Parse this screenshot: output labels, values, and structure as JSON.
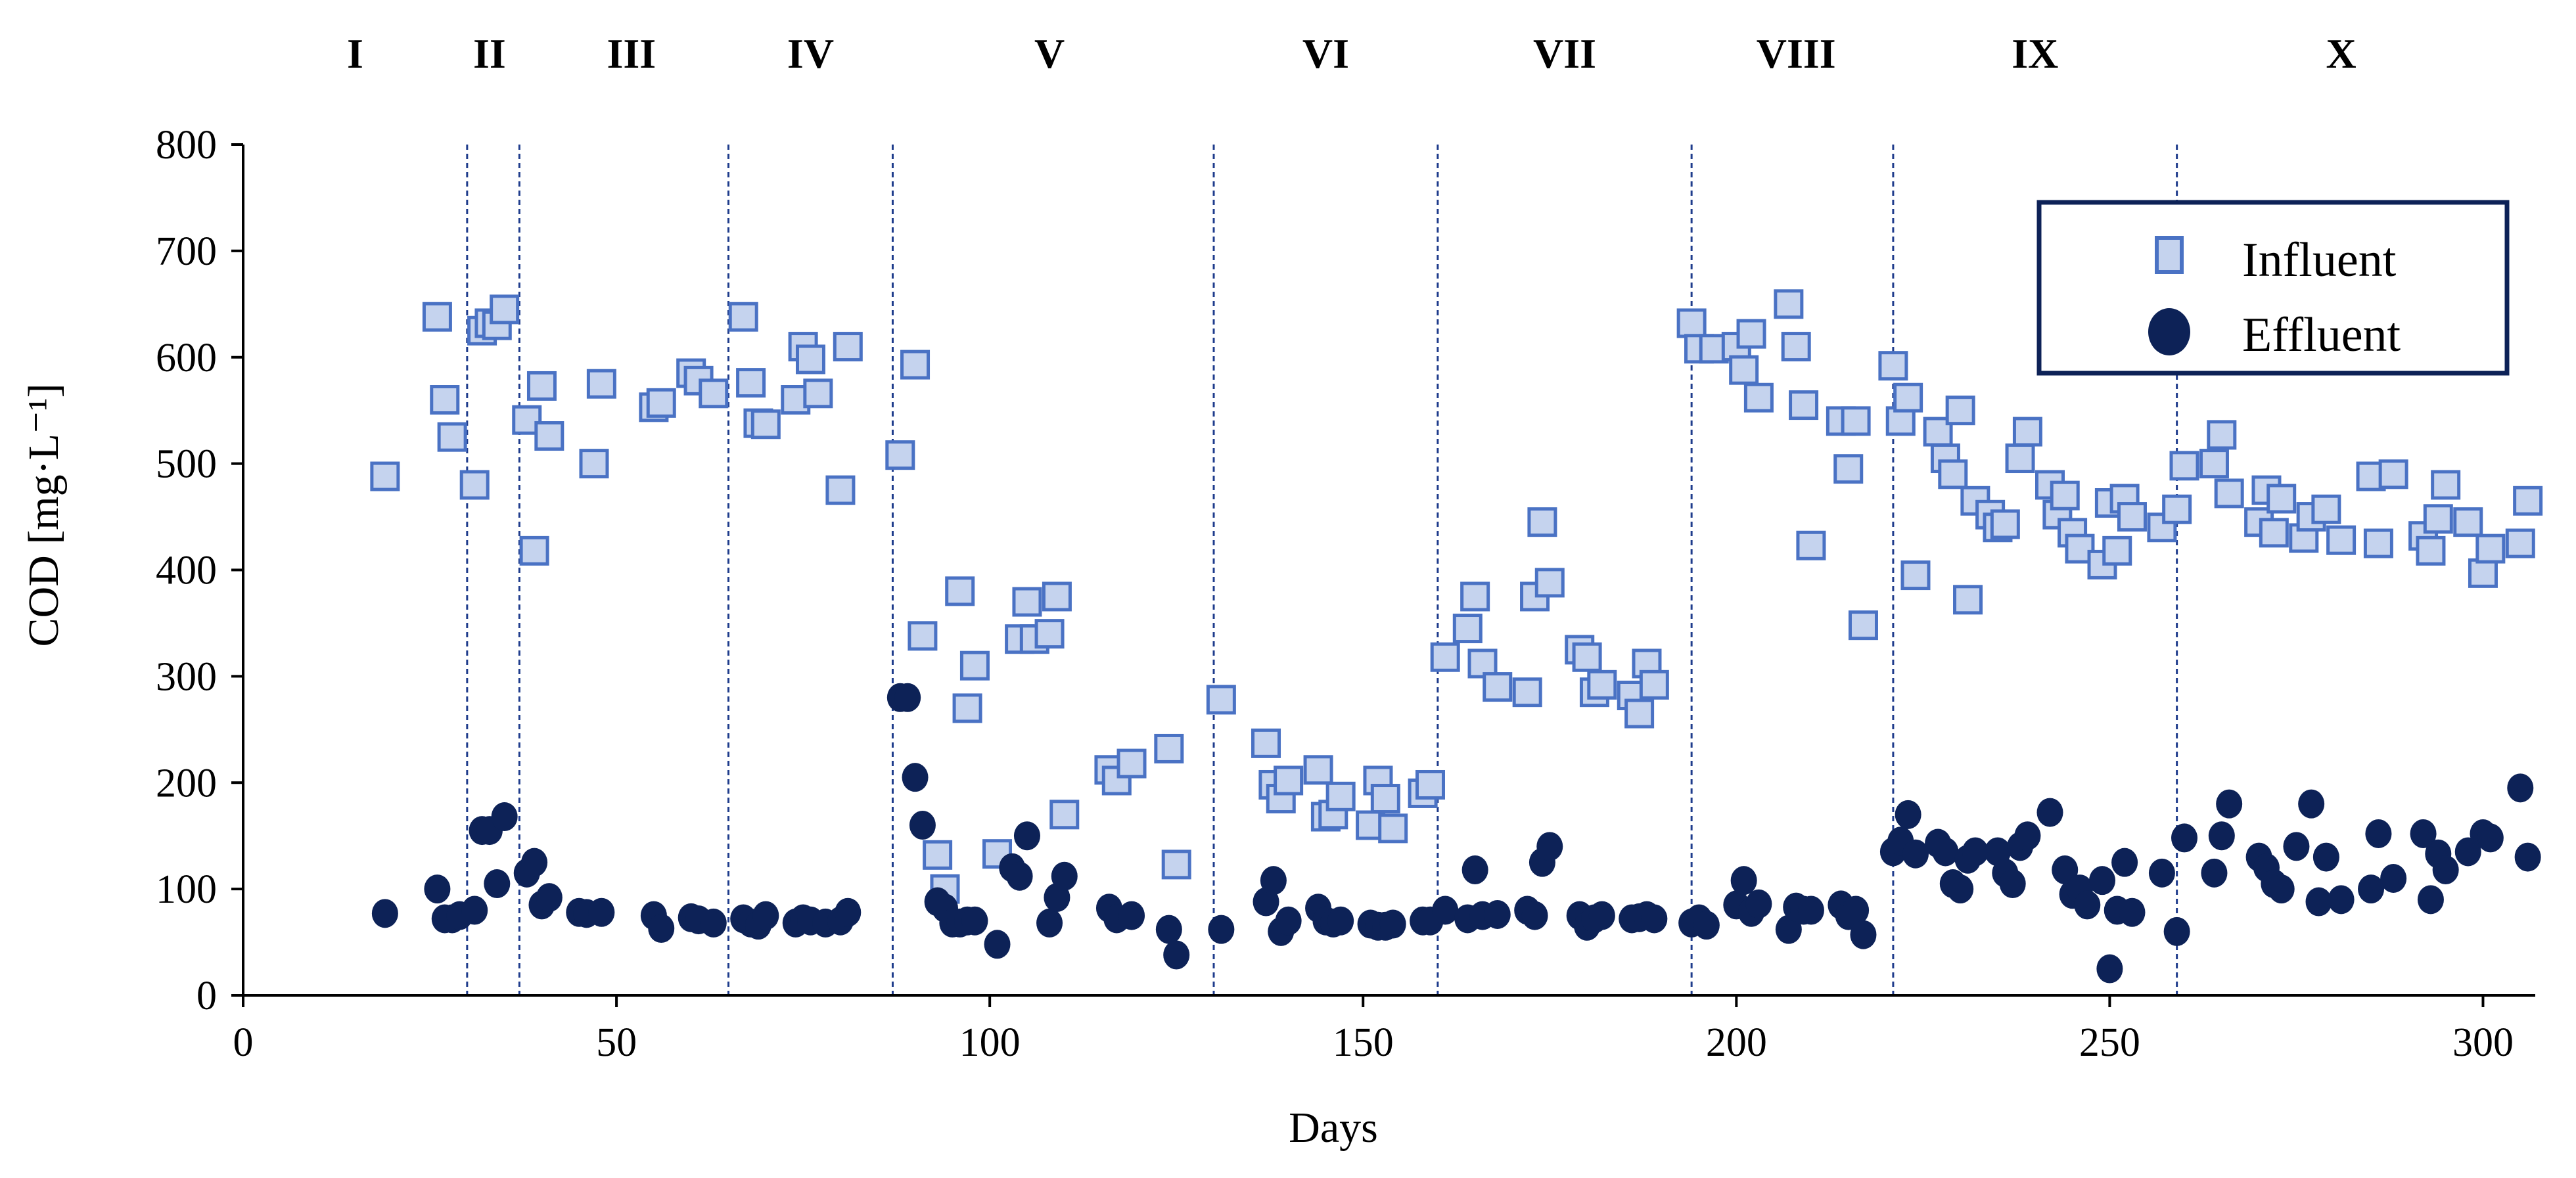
{
  "chart_data": {
    "type": "scatter",
    "title": "",
    "xlabel": "Days",
    "ylabel": "COD [mg·L⁻¹]",
    "xlim": [
      0,
      307
    ],
    "ylim": [
      0,
      800
    ],
    "xticks": [
      0,
      50,
      100,
      150,
      200,
      250,
      300
    ],
    "yticks": [
      0,
      100,
      200,
      300,
      400,
      500,
      600,
      700,
      800
    ],
    "phase_boundaries": [
      30,
      37,
      65,
      87,
      130,
      160,
      194,
      221,
      259
    ],
    "phases": [
      {
        "label": "I",
        "x": 15
      },
      {
        "label": "II",
        "x": 33
      },
      {
        "label": "III",
        "x": 52
      },
      {
        "label": "IV",
        "x": 76
      },
      {
        "label": "V",
        "x": 108
      },
      {
        "label": "VI",
        "x": 145
      },
      {
        "label": "VII",
        "x": 177
      },
      {
        "label": "VIII",
        "x": 208
      },
      {
        "label": "IX",
        "x": 240
      },
      {
        "label": "X",
        "x": 281
      }
    ],
    "legend": {
      "position": "top-right",
      "entries": [
        "Influent",
        "Effluent"
      ]
    },
    "colors": {
      "influent_fill": "#c5d3ee",
      "influent_edge": "#4a72c4",
      "effluent": "#0d2257",
      "legend_border": "#0d2257",
      "boundary": "#1f3c8c"
    },
    "series": [
      {
        "name": "Influent",
        "marker": "square",
        "points": [
          [
            19,
            488
          ],
          [
            26,
            638
          ],
          [
            27,
            560
          ],
          [
            28,
            525
          ],
          [
            31,
            480
          ],
          [
            32,
            625
          ],
          [
            33,
            632
          ],
          [
            34,
            630
          ],
          [
            35,
            645
          ],
          [
            38,
            541
          ],
          [
            39,
            418
          ],
          [
            40,
            573
          ],
          [
            41,
            526
          ],
          [
            47,
            500
          ],
          [
            48,
            575
          ],
          [
            55,
            553
          ],
          [
            56,
            557
          ],
          [
            60,
            585
          ],
          [
            61,
            578
          ],
          [
            63,
            566
          ],
          [
            67,
            638
          ],
          [
            68,
            576
          ],
          [
            69,
            538
          ],
          [
            70,
            537
          ],
          [
            74,
            560
          ],
          [
            75,
            610
          ],
          [
            76,
            598
          ],
          [
            77,
            566
          ],
          [
            80,
            475
          ],
          [
            81,
            610
          ],
          [
            88,
            508
          ],
          [
            90,
            593
          ],
          [
            91,
            338
          ],
          [
            93,
            132
          ],
          [
            94,
            100
          ],
          [
            96,
            380
          ],
          [
            97,
            270
          ],
          [
            98,
            310
          ],
          [
            101,
            133
          ],
          [
            104,
            335
          ],
          [
            105,
            370
          ],
          [
            106,
            335
          ],
          [
            108,
            340
          ],
          [
            109,
            375
          ],
          [
            110,
            170
          ],
          [
            116,
            212
          ],
          [
            117,
            202
          ],
          [
            119,
            218
          ],
          [
            124,
            232
          ],
          [
            125,
            123
          ],
          [
            131,
            278
          ],
          [
            137,
            237
          ],
          [
            138,
            198
          ],
          [
            139,
            185
          ],
          [
            140,
            202
          ],
          [
            144,
            212
          ],
          [
            145,
            168
          ],
          [
            146,
            170
          ],
          [
            147,
            187
          ],
          [
            151,
            160
          ],
          [
            152,
            202
          ],
          [
            153,
            185
          ],
          [
            154,
            157
          ],
          [
            158,
            190
          ],
          [
            159,
            198
          ],
          [
            161,
            318
          ],
          [
            164,
            345
          ],
          [
            165,
            375
          ],
          [
            166,
            312
          ],
          [
            168,
            290
          ],
          [
            172,
            285
          ],
          [
            173,
            375
          ],
          [
            174,
            445
          ],
          [
            175,
            388
          ],
          [
            179,
            325
          ],
          [
            180,
            318
          ],
          [
            181,
            285
          ],
          [
            182,
            292
          ],
          [
            186,
            282
          ],
          [
            187,
            265
          ],
          [
            188,
            312
          ],
          [
            189,
            292
          ],
          [
            194,
            632
          ],
          [
            195,
            608
          ],
          [
            197,
            608
          ],
          [
            200,
            610
          ],
          [
            201,
            588
          ],
          [
            202,
            622
          ],
          [
            203,
            562
          ],
          [
            207,
            650
          ],
          [
            208,
            610
          ],
          [
            209,
            555
          ],
          [
            210,
            423
          ],
          [
            214,
            540
          ],
          [
            215,
            495
          ],
          [
            216,
            540
          ],
          [
            217,
            348
          ],
          [
            221,
            592
          ],
          [
            222,
            540
          ],
          [
            223,
            562
          ],
          [
            224,
            395
          ],
          [
            227,
            530
          ],
          [
            228,
            505
          ],
          [
            229,
            490
          ],
          [
            230,
            550
          ],
          [
            231,
            372
          ],
          [
            232,
            465
          ],
          [
            234,
            452
          ],
          [
            235,
            440
          ],
          [
            236,
            443
          ],
          [
            238,
            505
          ],
          [
            239,
            530
          ],
          [
            242,
            480
          ],
          [
            243,
            452
          ],
          [
            244,
            470
          ],
          [
            245,
            435
          ],
          [
            246,
            420
          ],
          [
            249,
            405
          ],
          [
            250,
            463
          ],
          [
            251,
            418
          ],
          [
            252,
            467
          ],
          [
            253,
            450
          ],
          [
            257,
            440
          ],
          [
            259,
            457
          ],
          [
            260,
            498
          ],
          [
            264,
            500
          ],
          [
            265,
            527
          ],
          [
            266,
            472
          ],
          [
            270,
            445
          ],
          [
            271,
            475
          ],
          [
            272,
            435
          ],
          [
            273,
            467
          ],
          [
            276,
            430
          ],
          [
            277,
            450
          ],
          [
            279,
            457
          ],
          [
            281,
            428
          ],
          [
            285,
            488
          ],
          [
            286,
            425
          ],
          [
            288,
            490
          ],
          [
            292,
            432
          ],
          [
            293,
            418
          ],
          [
            294,
            448
          ],
          [
            295,
            480
          ],
          [
            298,
            445
          ],
          [
            300,
            397
          ],
          [
            301,
            420
          ],
          [
            305,
            425
          ],
          [
            306,
            465
          ]
        ]
      },
      {
        "name": "Effluent",
        "marker": "circle",
        "points": [
          [
            19,
            77
          ],
          [
            26,
            100
          ],
          [
            27,
            72
          ],
          [
            28,
            72
          ],
          [
            29,
            75
          ],
          [
            31,
            80
          ],
          [
            32,
            155
          ],
          [
            33,
            155
          ],
          [
            34,
            105
          ],
          [
            35,
            168
          ],
          [
            38,
            115
          ],
          [
            39,
            125
          ],
          [
            40,
            85
          ],
          [
            41,
            92
          ],
          [
            45,
            78
          ],
          [
            46,
            77
          ],
          [
            48,
            78
          ],
          [
            55,
            75
          ],
          [
            56,
            63
          ],
          [
            60,
            73
          ],
          [
            61,
            71
          ],
          [
            63,
            68
          ],
          [
            67,
            72
          ],
          [
            68,
            68
          ],
          [
            69,
            66
          ],
          [
            70,
            75
          ],
          [
            74,
            68
          ],
          [
            75,
            72
          ],
          [
            76,
            70
          ],
          [
            78,
            68
          ],
          [
            80,
            70
          ],
          [
            81,
            78
          ],
          [
            88,
            280
          ],
          [
            89,
            280
          ],
          [
            90,
            205
          ],
          [
            91,
            160
          ],
          [
            93,
            88
          ],
          [
            94,
            82
          ],
          [
            95,
            68
          ],
          [
            96,
            68
          ],
          [
            97,
            70
          ],
          [
            98,
            70
          ],
          [
            101,
            48
          ],
          [
            103,
            120
          ],
          [
            104,
            112
          ],
          [
            105,
            150
          ],
          [
            108,
            68
          ],
          [
            109,
            92
          ],
          [
            110,
            112
          ],
          [
            116,
            82
          ],
          [
            117,
            72
          ],
          [
            119,
            75
          ],
          [
            124,
            62
          ],
          [
            125,
            38
          ],
          [
            131,
            62
          ],
          [
            137,
            88
          ],
          [
            138,
            108
          ],
          [
            139,
            60
          ],
          [
            140,
            70
          ],
          [
            144,
            82
          ],
          [
            145,
            70
          ],
          [
            146,
            68
          ],
          [
            147,
            70
          ],
          [
            151,
            67
          ],
          [
            152,
            65
          ],
          [
            153,
            65
          ],
          [
            154,
            67
          ],
          [
            158,
            70
          ],
          [
            159,
            70
          ],
          [
            161,
            80
          ],
          [
            164,
            72
          ],
          [
            165,
            118
          ],
          [
            166,
            75
          ],
          [
            168,
            76
          ],
          [
            172,
            80
          ],
          [
            173,
            75
          ],
          [
            174,
            125
          ],
          [
            175,
            140
          ],
          [
            179,
            75
          ],
          [
            180,
            65
          ],
          [
            181,
            72
          ],
          [
            182,
            75
          ],
          [
            186,
            72
          ],
          [
            187,
            73
          ],
          [
            188,
            75
          ],
          [
            189,
            72
          ],
          [
            194,
            68
          ],
          [
            195,
            72
          ],
          [
            196,
            66
          ],
          [
            200,
            85
          ],
          [
            201,
            108
          ],
          [
            202,
            78
          ],
          [
            203,
            86
          ],
          [
            207,
            62
          ],
          [
            208,
            83
          ],
          [
            209,
            80
          ],
          [
            210,
            80
          ],
          [
            214,
            85
          ],
          [
            215,
            75
          ],
          [
            216,
            80
          ],
          [
            217,
            57
          ],
          [
            221,
            135
          ],
          [
            222,
            145
          ],
          [
            223,
            170
          ],
          [
            224,
            133
          ],
          [
            227,
            143
          ],
          [
            228,
            135
          ],
          [
            229,
            105
          ],
          [
            230,
            100
          ],
          [
            231,
            128
          ],
          [
            232,
            135
          ],
          [
            235,
            135
          ],
          [
            236,
            115
          ],
          [
            237,
            105
          ],
          [
            238,
            140
          ],
          [
            239,
            150
          ],
          [
            242,
            172
          ],
          [
            244,
            118
          ],
          [
            245,
            95
          ],
          [
            246,
            100
          ],
          [
            247,
            85
          ],
          [
            249,
            108
          ],
          [
            250,
            25
          ],
          [
            251,
            80
          ],
          [
            252,
            125
          ],
          [
            253,
            78
          ],
          [
            257,
            115
          ],
          [
            259,
            60
          ],
          [
            260,
            148
          ],
          [
            264,
            115
          ],
          [
            265,
            150
          ],
          [
            266,
            180
          ],
          [
            270,
            130
          ],
          [
            271,
            120
          ],
          [
            272,
            105
          ],
          [
            273,
            100
          ],
          [
            275,
            140
          ],
          [
            277,
            180
          ],
          [
            278,
            88
          ],
          [
            279,
            130
          ],
          [
            281,
            90
          ],
          [
            285,
            100
          ],
          [
            286,
            152
          ],
          [
            288,
            110
          ],
          [
            292,
            152
          ],
          [
            293,
            90
          ],
          [
            294,
            133
          ],
          [
            295,
            118
          ],
          [
            298,
            135
          ],
          [
            300,
            152
          ],
          [
            301,
            148
          ],
          [
            305,
            195
          ],
          [
            306,
            130
          ]
        ]
      }
    ]
  }
}
